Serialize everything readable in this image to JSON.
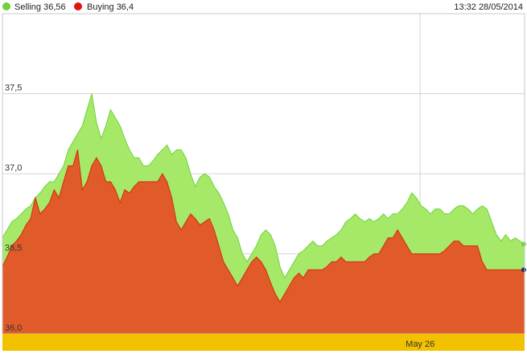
{
  "header": {
    "timestamp": "13:32 28/05/2014"
  },
  "colors": {
    "selling": "#a6e868",
    "selling_marker": "#6cd43a",
    "buying": "#e15b2a",
    "buying_marker": "#e0130f",
    "buying_line": "#d22a0c",
    "timeline_bar": "#f2c200",
    "grid": "#d4d4d4",
    "frame": "#c8c8c8",
    "end_marker": "#1a2a6c"
  },
  "chart_data": {
    "type": "area",
    "title": "",
    "xlabel": "",
    "ylabel": "",
    "ylim": [
      36.0,
      38.0
    ],
    "grid": true,
    "legend": "top-left",
    "y_ticks": [
      "36,0",
      "36,5",
      "37,0",
      "37,5"
    ],
    "y_tick_values": [
      36.0,
      36.5,
      37.0,
      37.5
    ],
    "x_ticks": [
      "May 26"
    ],
    "x_tick_positions": [
      0.8
    ],
    "series": [
      {
        "name": "Selling 36,56",
        "values": [
          36.6,
          36.65,
          36.7,
          36.72,
          36.75,
          36.78,
          36.8,
          36.85,
          36.88,
          36.92,
          36.95,
          36.95,
          37.0,
          37.05,
          37.15,
          37.2,
          37.25,
          37.3,
          37.4,
          37.5,
          37.32,
          37.22,
          37.3,
          37.4,
          37.35,
          37.3,
          37.22,
          37.15,
          37.1,
          37.1,
          37.05,
          37.05,
          37.08,
          37.12,
          37.15,
          37.18,
          37.12,
          37.15,
          37.15,
          37.1,
          37.0,
          36.92,
          36.98,
          37.0,
          36.98,
          36.92,
          36.88,
          36.82,
          36.75,
          36.65,
          36.6,
          36.5,
          36.45,
          36.5,
          36.55,
          36.62,
          36.65,
          36.62,
          36.55,
          36.42,
          36.35,
          36.4,
          36.45,
          36.5,
          36.52,
          36.55,
          36.58,
          36.55,
          36.55,
          36.58,
          36.6,
          36.62,
          36.65,
          36.7,
          36.72,
          36.75,
          36.72,
          36.7,
          36.72,
          36.7,
          36.72,
          36.75,
          36.72,
          36.75,
          36.75,
          36.78,
          36.82,
          36.88,
          36.85,
          36.8,
          36.78,
          36.75,
          36.78,
          36.78,
          36.75,
          36.75,
          36.78,
          36.8,
          36.8,
          36.78,
          36.75,
          36.78,
          36.8,
          36.78,
          36.7,
          36.62,
          36.58,
          36.62,
          36.58,
          36.6,
          36.58,
          36.56
        ]
      },
      {
        "name": "Buying 36,4",
        "values": [
          36.42,
          36.48,
          36.55,
          36.58,
          36.62,
          36.68,
          36.72,
          36.85,
          36.75,
          36.78,
          36.82,
          36.9,
          36.85,
          36.95,
          37.05,
          37.05,
          37.15,
          36.9,
          36.95,
          37.05,
          37.1,
          37.05,
          36.95,
          36.95,
          36.9,
          36.82,
          36.9,
          36.88,
          36.92,
          36.95,
          36.95,
          36.95,
          36.95,
          36.95,
          37.0,
          36.95,
          36.85,
          36.7,
          36.65,
          36.7,
          36.75,
          36.72,
          36.68,
          36.7,
          36.72,
          36.65,
          36.55,
          36.45,
          36.4,
          36.35,
          36.3,
          36.35,
          36.4,
          36.45,
          36.48,
          36.45,
          36.4,
          36.32,
          36.25,
          36.2,
          36.25,
          36.3,
          36.35,
          36.38,
          36.35,
          36.4,
          36.4,
          36.4,
          36.4,
          36.42,
          36.45,
          36.45,
          36.48,
          36.45,
          36.45,
          36.45,
          36.45,
          36.45,
          36.48,
          36.5,
          36.5,
          36.55,
          36.6,
          36.6,
          36.65,
          36.6,
          36.55,
          36.5,
          36.5,
          36.5,
          36.5,
          36.5,
          36.5,
          36.5,
          36.52,
          36.55,
          36.58,
          36.58,
          36.55,
          36.55,
          36.55,
          36.55,
          36.45,
          36.4,
          36.4,
          36.4,
          36.4,
          36.4,
          36.4,
          36.4,
          36.4,
          36.4
        ]
      }
    ]
  }
}
